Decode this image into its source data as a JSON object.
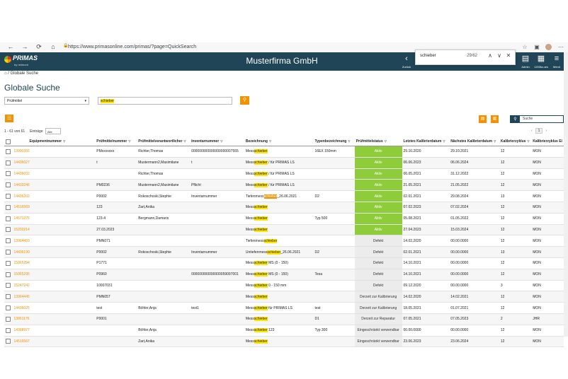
{
  "browser": {
    "url": "https://www.primasonline.com/primas/?page=QuickSearch",
    "nav": [
      "←",
      "→",
      "⟳",
      "⌂"
    ]
  },
  "header": {
    "logo_name": "PRIMAS",
    "logo_sub": "by netmont",
    "company": "Musterfirma GmbH",
    "tools": [
      {
        "icon": "‹",
        "label": "Zurück"
      },
      {
        "icon": "▤",
        "label": "Admin"
      },
      {
        "icon": "▦",
        "label": "1200kz-ars"
      },
      {
        "icon": "≡",
        "label": "Menü"
      }
    ]
  },
  "findbar": {
    "query": "schieber",
    "count": "29/62"
  },
  "breadcrumb": "Globale Suche",
  "page_title": "Globale Suche",
  "search": {
    "category": "Prüfmittel",
    "query": "schieber"
  },
  "table_search": {
    "placeholder": "Suche"
  },
  "listing": {
    "count_text": "1 - 61 von 61",
    "entries_label": "Einträge",
    "entries_value": "Alle",
    "page": "1"
  },
  "columns": [
    "Equipmentnummer",
    "Prüfmittelnummer",
    "Prüfmittelverantwortlicher",
    "Inventarnummer",
    "Bezeichnung",
    "Typenbezeichnung",
    "Prüfmittelstatus",
    "Letztes Kalibrierdatum",
    "Nächstes Kalibrierdatum",
    "Kalibrierzyklus",
    "Kalibrierzyklus Ei"
  ],
  "rows": [
    {
      "eq": "13990355",
      "pm": "PMxxxxxxx",
      "resp": "Richter,Thomas",
      "inv": "000000000000000000007555",
      "pre": "Mess",
      "hit": "schieber",
      "post": "",
      "type": "16EX 150mm",
      "status": "Aktiv",
      "last": "29.10.2020",
      "next": "29.10.2021",
      "cycle": "12",
      "unit": "MON"
    },
    {
      "eq": "14436027",
      "pm": "t",
      "resp": "Mustermann2,Maximilane",
      "inv": "t",
      "pre": "Mess",
      "hit": "schieber",
      "post": " / für PRIMAS LS",
      "type": "",
      "status": "Aktiv",
      "last": "06.06.2023",
      "next": "06.06.2024",
      "cycle": "12",
      "unit": "MON"
    },
    {
      "eq": "14436032",
      "pm": "",
      "resp": "Richter,Thomas",
      "inv": "",
      "pre": "Mess",
      "hit": "schieber",
      "post": " / für PRIMAS LS",
      "type": "",
      "status": "Aktiv",
      "last": "06.05.2021",
      "next": "31.12.2022",
      "cycle": "12",
      "unit": "MON"
    },
    {
      "eq": "14433246",
      "pm": "PM0236",
      "resp": "Mustermann2,Maximilane",
      "inv": "Pflicht",
      "pre": "Mess",
      "hit": "schieber",
      "post": " / für PRIMAS LS",
      "type": "",
      "status": "Aktiv",
      "last": "21.05.2021",
      "next": "21.05.2022",
      "cycle": "12",
      "unit": "MON"
    },
    {
      "eq": "14436202",
      "pm": "P0002",
      "resp": "Rokoschoski,Stephie",
      "inv": "Inventarnummer",
      "pre": "Tiefenmess",
      "hit": "schieber",
      "post": "_26.06.2021",
      "type": "D2",
      "status": "Aktiv",
      "last": "02.01.2021",
      "next": "29.08.2024",
      "cycle": "13",
      "unit": "MON"
    },
    {
      "eq": "14516569",
      "pm": "123",
      "resp": "Zart,Anika",
      "inv": "",
      "pre": "Mess",
      "hit": "schieber",
      "post": "",
      "type": "",
      "status": "Aktiv",
      "last": "07.02.2023",
      "next": "07.02.2024",
      "cycle": "12",
      "unit": "MON"
    },
    {
      "eq": "14571275",
      "pm": "123-4",
      "resp": "Bergmann,Damaris",
      "inv": "",
      "pre": "Mess",
      "hit": "schieber",
      "post": "",
      "type": "Typ 500",
      "status": "Aktiv",
      "last": "05.08.2021",
      "next": "01.05.2022",
      "cycle": "12",
      "unit": "MON"
    },
    {
      "eq": "15202214",
      "pm": "27.03.2023",
      "resp": "",
      "inv": "",
      "pre": "Mess",
      "hit": "schieber",
      "post": "",
      "type": "",
      "status": "Aktiv",
      "last": "27.04.2023",
      "next": "15.03.2024",
      "cycle": "12",
      "unit": "MON"
    },
    {
      "eq": "13964459",
      "pm": "PMN071",
      "resp": "",
      "inv": "",
      "pre": "Tiefenmess",
      "hit": "schieber",
      "post": "",
      "type": "",
      "status": "Defekt",
      "last": "14.02.2020",
      "next": "00.00.0000",
      "cycle": "12",
      "unit": "MON"
    },
    {
      "eq": "14436190",
      "pm": "P0002",
      "resp": "Rokoschoski,Stephie",
      "inv": "Inventarnummer",
      "pre": "Untiefenmess",
      "hit": "schieber",
      "post": "_26.06.2021",
      "type": "D2",
      "status": "Defekt",
      "last": "02.01.2021",
      "next": "00.00.0000",
      "cycle": "13",
      "unit": "MON"
    },
    {
      "eq": "15065294",
      "pm": "P1771",
      "resp": "",
      "inv": "",
      "pre": "Mess",
      "hit": "schieber",
      "post": " MS (0 - 150)",
      "type": "",
      "status": "Defekt",
      "last": "14.10.2021",
      "next": "00.00.0000",
      "cycle": "12",
      "unit": "MON"
    },
    {
      "eq": "15065295",
      "pm": "P0960",
      "resp": "",
      "inv": "000000000000000059097001",
      "pre": "Mess",
      "hit": "schieber",
      "post": " MS (0 - 150)",
      "type": "Tesa",
      "status": "Defekt",
      "last": "14.10.2021",
      "next": "00.00.0000",
      "cycle": "12",
      "unit": "MON"
    },
    {
      "eq": "15247242",
      "pm": "10007031",
      "resp": "",
      "inv": "",
      "pre": "Mess",
      "hit": "schieber",
      "post": " 0 - 150 mm",
      "type": "",
      "status": "Defekt",
      "last": "09.12.2020",
      "next": "00.00.0000",
      "cycle": "3",
      "unit": "MON"
    },
    {
      "eq": "13964445",
      "pm": "PMN057",
      "resp": "",
      "inv": "",
      "pre": "Mess",
      "hit": "schieber",
      "post": "",
      "type": "",
      "status": "Derzeit zur Kalibrierung",
      "last": "14.02.2020",
      "next": "14.02.2021",
      "cycle": "12",
      "unit": "MON"
    },
    {
      "eq": "14436025",
      "pm": "test",
      "resp": "Böhler,Anja",
      "inv": "test1",
      "pre": "Mess",
      "hit": "schieber",
      "post": " für PRIMAS LS",
      "type": "test",
      "status": "Derzeit zur Kalibrierung",
      "last": "18.05.2021",
      "next": "01.07.2021",
      "cycle": "12",
      "unit": "MON"
    },
    {
      "eq": "13861176",
      "pm": "P0001",
      "resp": "",
      "inv": "",
      "pre": "Mess",
      "hit": "schieber",
      "post": "",
      "type": "D1",
      "status": "Derzeit zur Reparatur",
      "last": "07.05.2021",
      "next": "07.05.2023",
      "cycle": "2",
      "unit": "JHR"
    },
    {
      "eq": "14368977",
      "pm": "",
      "resp": "Böhler,Anja",
      "inv": "",
      "pre": "Mess",
      "hit": "schieber",
      "post": " 123",
      "type": "Typ 300",
      "status": "Eingeschränkt verwendbar",
      "last": "00.00.0000",
      "next": "00.00.0000",
      "cycle": "12",
      "unit": "MON"
    },
    {
      "eq": "14516567",
      "pm": "",
      "resp": "Zart,Anika",
      "inv": "",
      "pre": "Mess",
      "hit": "schieber",
      "post": "",
      "type": "",
      "status": "Eingeschränkt verwendbar",
      "last": "23.06.2023",
      "next": "23.06.2024",
      "cycle": "12",
      "unit": "MON"
    }
  ]
}
